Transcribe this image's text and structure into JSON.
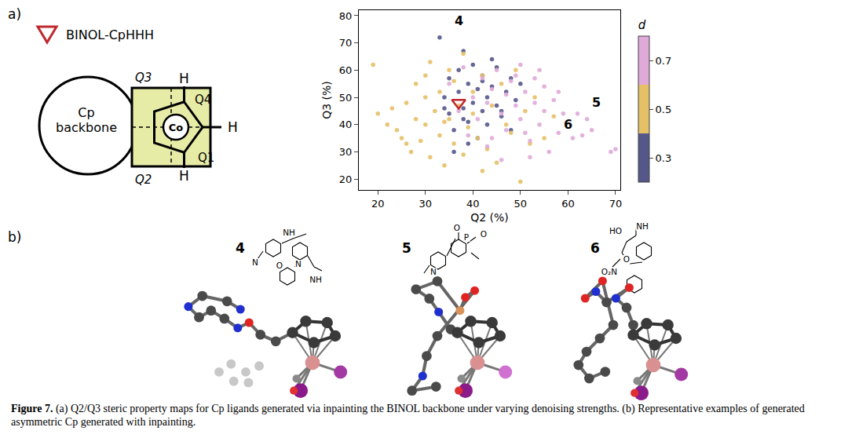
{
  "panel_labels": [
    "a)",
    "b)"
  ],
  "diagram": {
    "backbone": "Cp backbone",
    "metal": "Co",
    "quadrants": [
      "Q1",
      "Q2",
      "Q3",
      "Q4"
    ],
    "substituents": [
      "H",
      "H",
      "H"
    ],
    "reference_label": "BINOL-CpHHH"
  },
  "chart_data": {
    "type": "scatter",
    "xlabel": "Q2 (%)",
    "ylabel": "Q3 (%)",
    "xlim": [
      16,
      71
    ],
    "ylim": [
      16,
      82
    ],
    "xticks": [
      20,
      30,
      40,
      50,
      60,
      70
    ],
    "yticks": [
      20,
      30,
      40,
      50,
      60,
      70,
      80
    ],
    "grid": false,
    "colorbar": {
      "title": "d",
      "range": [
        0.2,
        0.8
      ],
      "ticks": [
        0.3,
        0.5,
        0.7
      ]
    },
    "series": [
      {
        "d": 0.3,
        "color": "#55578a",
        "x": [
          33,
          34,
          35,
          35,
          36,
          37,
          37,
          38,
          38,
          39,
          39,
          40,
          40,
          41,
          41,
          42,
          42,
          43,
          43,
          44,
          45,
          45,
          46,
          47,
          48,
          48,
          49,
          50,
          36,
          39,
          44,
          34,
          38,
          42,
          46
        ],
        "y": [
          72,
          50,
          44,
          57,
          38,
          60,
          52,
          46,
          67,
          41,
          55,
          48,
          62,
          35,
          53,
          45,
          58,
          40,
          50,
          54,
          47,
          61,
          43,
          52,
          57,
          38,
          49,
          55,
          30,
          33,
          64,
          46,
          42,
          56,
          45
        ]
      },
      {
        "d": 0.5,
        "color": "#e6c066",
        "x": [
          19,
          20,
          22,
          23,
          24,
          25,
          26,
          27,
          28,
          28,
          29,
          30,
          30,
          31,
          31,
          32,
          33,
          33,
          34,
          35,
          35,
          36,
          36,
          37,
          38,
          38,
          39,
          40,
          40,
          41,
          42,
          43,
          44,
          45,
          46,
          47,
          48,
          49,
          50,
          51,
          52,
          53,
          55,
          57,
          42,
          30,
          26,
          34
        ],
        "y": [
          62,
          44,
          40,
          46,
          38,
          35,
          48,
          30,
          55,
          42,
          34,
          58,
          40,
          63,
          28,
          45,
          36,
          52,
          25,
          60,
          42,
          33,
          56,
          47,
          29,
          66,
          39,
          52,
          44,
          35,
          58,
          31,
          47,
          26,
          55,
          40,
          37,
          60,
          19,
          45,
          33,
          50,
          35,
          43,
          23,
          50,
          33,
          41
        ]
      },
      {
        "d": 0.7,
        "color": "#dfaad8",
        "x": [
          35,
          37,
          38,
          40,
          41,
          42,
          43,
          44,
          44,
          45,
          46,
          47,
          47,
          48,
          49,
          50,
          50,
          51,
          52,
          53,
          53,
          54,
          55,
          55,
          56,
          57,
          58,
          59,
          60,
          61,
          62,
          63,
          65,
          66,
          69,
          70,
          46,
          43,
          49,
          52,
          58,
          39,
          54,
          51,
          64
        ],
        "y": [
          55,
          45,
          61,
          50,
          42,
          57,
          48,
          35,
          53,
          60,
          44,
          51,
          38,
          56,
          47,
          62,
          42,
          52,
          34,
          48,
          57,
          40,
          45,
          54,
          30,
          49,
          37,
          44,
          41,
          35,
          44,
          36,
          38,
          48,
          30,
          31,
          27,
          32,
          58,
          28,
          52,
          36,
          60,
          37,
          42
        ]
      }
    ],
    "reference": {
      "label": "BINOL-CpHHH",
      "x": 37,
      "y": 48,
      "color": "#c0282d",
      "marker": "triangle-down-open"
    },
    "annotations": [
      {
        "text": "4",
        "x": 37,
        "y": 78
      },
      {
        "text": "5",
        "x": 66,
        "y": 48
      },
      {
        "text": "6",
        "x": 60,
        "y": 40
      }
    ]
  },
  "examples": [
    {
      "label": "4",
      "atom_labels": [
        "NH",
        "N",
        "O",
        "N",
        "NH"
      ]
    },
    {
      "label": "5",
      "atom_labels": [
        "O",
        "P",
        "O",
        "N"
      ]
    },
    {
      "label": "6",
      "atom_labels": [
        "HO",
        "NH",
        "O",
        "O₂N"
      ]
    }
  ],
  "caption": {
    "lead": "Figure 7.",
    "text": "(a) Q2/Q3 steric property maps for Cp ligands generated via inpainting the BINOL backbone under varying denoising strengths. (b) Representative examples of generated asymmetric Cp generated with inpainting."
  }
}
